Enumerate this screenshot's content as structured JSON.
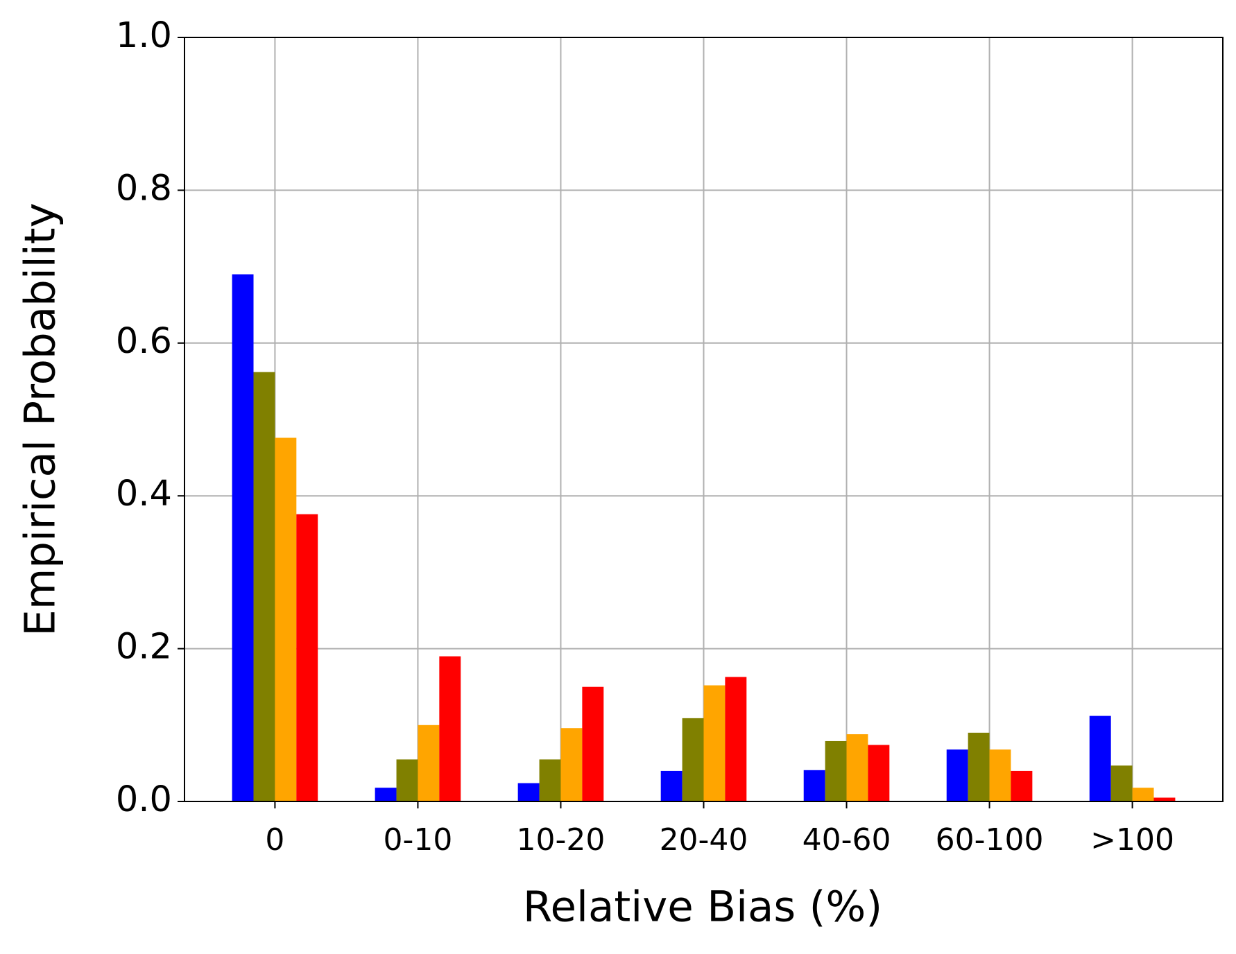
{
  "chart_data": {
    "type": "bar",
    "x_label": "Relative Bias (%)",
    "y_label": "Empirical Probability",
    "categories": [
      "0",
      "0-10",
      "10-20",
      "20-40",
      "40-60",
      "60-100",
      ">100"
    ],
    "series": [
      {
        "color": "#0000ff",
        "values": [
          0.69,
          0.018,
          0.024,
          0.04,
          0.041,
          0.068,
          0.112
        ]
      },
      {
        "color": "#808000",
        "values": [
          0.562,
          0.055,
          0.055,
          0.109,
          0.079,
          0.09,
          0.047
        ]
      },
      {
        "color": "#ffa500",
        "values": [
          0.476,
          0.1,
          0.096,
          0.152,
          0.088,
          0.068,
          0.018
        ]
      },
      {
        "color": "#ff0000",
        "values": [
          0.376,
          0.19,
          0.15,
          0.163,
          0.074,
          0.04,
          0.005
        ]
      }
    ],
    "ylim": [
      0,
      1.0
    ],
    "yticks": [
      {
        "value": 0,
        "label": "0.0"
      },
      {
        "value": 0.2,
        "label": "0.2"
      },
      {
        "value": 0.4,
        "label": "0.4"
      },
      {
        "value": 0.6,
        "label": "0.6"
      },
      {
        "value": 0.8,
        "label": "0.8"
      },
      {
        "value": 1.0,
        "label": "1.0"
      }
    ],
    "grid": true
  }
}
